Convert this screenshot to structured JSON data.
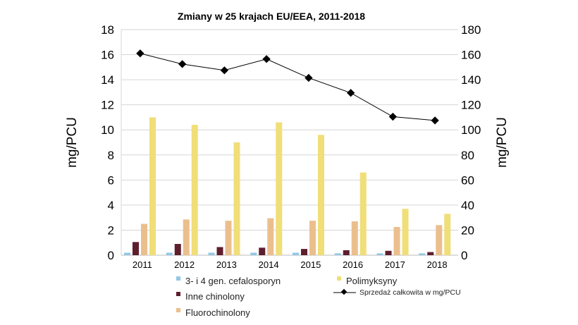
{
  "chart_data": {
    "type": "bar",
    "title": "Zmiany w 25 krajach EU/EEA, 2011-2018",
    "ylabel": "mg/PCU",
    "y2label": "mg/PCU",
    "ylim": [
      0,
      18
    ],
    "y2lim": [
      0,
      180
    ],
    "yticks": [
      0,
      2,
      4,
      6,
      8,
      10,
      12,
      14,
      16,
      18
    ],
    "y2ticks": [
      0,
      20,
      40,
      60,
      80,
      100,
      120,
      140,
      160,
      180
    ],
    "grid": true,
    "categories": [
      "2011",
      "2012",
      "2013",
      "2014",
      "2015",
      "2016",
      "2017",
      "2018"
    ],
    "series": [
      {
        "name": "3- i 4 gen. cefalosporyn",
        "type": "bar",
        "axis": "left",
        "color": "#93c8e4",
        "values": [
          0.2,
          0.2,
          0.2,
          0.2,
          0.2,
          0.15,
          0.15,
          0.15
        ]
      },
      {
        "name": "Inne chinolony",
        "type": "bar",
        "axis": "left",
        "color": "#5e1e2e",
        "values": [
          1.05,
          0.9,
          0.65,
          0.6,
          0.5,
          0.4,
          0.35,
          0.25
        ]
      },
      {
        "name": "Fluorochinolony",
        "type": "bar",
        "axis": "left",
        "color": "#ebbf8d",
        "values": [
          2.5,
          2.85,
          2.75,
          2.95,
          2.75,
          2.7,
          2.25,
          2.4
        ]
      },
      {
        "name": "Polimyksyny",
        "type": "bar",
        "axis": "left",
        "color": "#f0de78",
        "values": [
          11.0,
          10.4,
          9.0,
          10.6,
          9.6,
          6.6,
          3.7,
          3.3
        ]
      },
      {
        "name": "Sprzedaż całkowita w mg/PCU",
        "type": "line",
        "axis": "right",
        "color": "#000000",
        "values": [
          161,
          152.5,
          147.5,
          156.5,
          141.5,
          129.5,
          110.5,
          107.5
        ]
      }
    ],
    "legend": "bottom"
  }
}
